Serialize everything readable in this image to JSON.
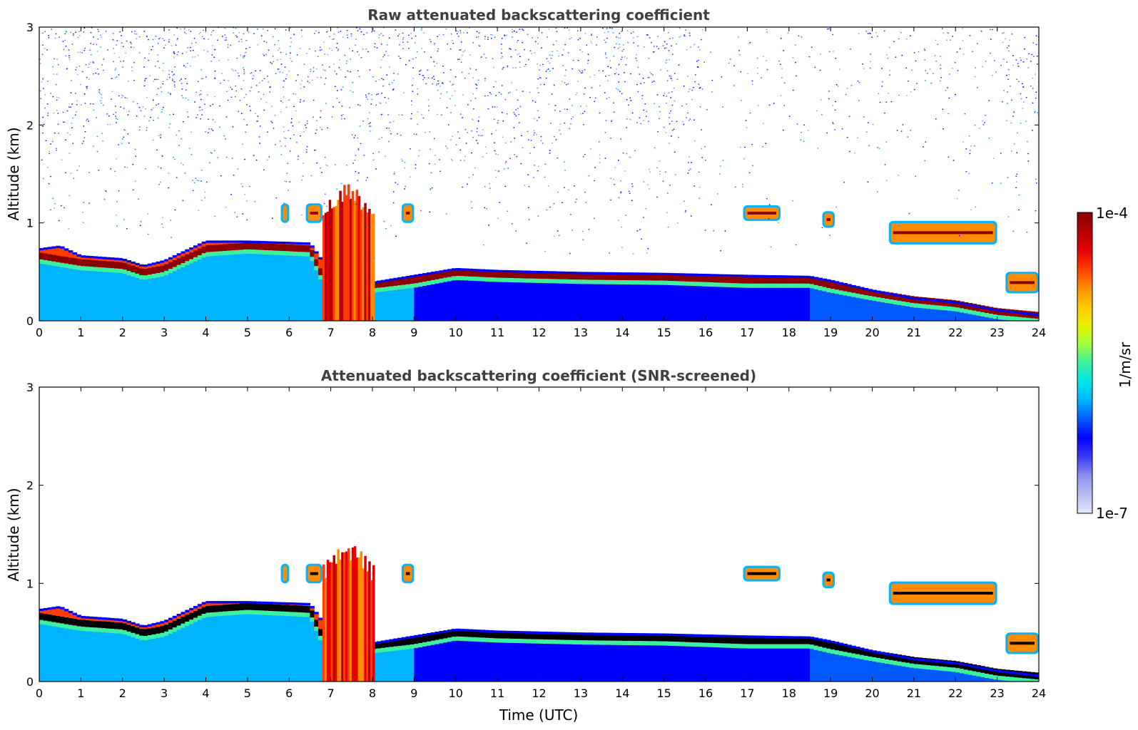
{
  "chart_data": [
    {
      "type": "heatmap",
      "title": "Raw attenuated backscattering coefficient",
      "xlabel": "",
      "ylabel": "Altitude (km)",
      "xlim": [
        0,
        24
      ],
      "ylim": [
        0,
        3
      ],
      "xticks": [
        "0",
        "1",
        "2",
        "3",
        "4",
        "5",
        "6",
        "7",
        "8",
        "9",
        "10",
        "11",
        "12",
        "13",
        "14",
        "15",
        "16",
        "17",
        "18",
        "19",
        "20",
        "21",
        "22",
        "23",
        "24"
      ],
      "yticks": [
        "0",
        "1",
        "2",
        "3"
      ],
      "grid": false
    },
    {
      "type": "heatmap",
      "title": "Attenuated backscattering coefficient (SNR-screened)",
      "xlabel": "Time (UTC)",
      "ylabel": "Altitude (km)",
      "xlim": [
        0,
        24
      ],
      "ylim": [
        0,
        3
      ],
      "xticks": [
        "0",
        "1",
        "2",
        "3",
        "4",
        "5",
        "6",
        "7",
        "8",
        "9",
        "10",
        "11",
        "12",
        "13",
        "14",
        "15",
        "16",
        "17",
        "18",
        "19",
        "20",
        "21",
        "22",
        "23",
        "24"
      ],
      "yticks": [
        "0",
        "1",
        "2",
        "3"
      ],
      "grid": false
    }
  ],
  "colorbar": {
    "label": "1/m/sr",
    "max_label": "1e-4",
    "min_label": "1e-7",
    "scale": "log",
    "colormap": [
      "#e6e8fa",
      "#b7bdf2",
      "#8a90ee",
      "#3a3af5",
      "#0000ff",
      "#005aff",
      "#00b4ff",
      "#00e6e6",
      "#3cf0a0",
      "#a0ff3c",
      "#e6f000",
      "#ffc800",
      "#ff8c00",
      "#ff3c00",
      "#e60000",
      "#b40000",
      "#8b0000"
    ]
  },
  "features": {
    "layer_top_km": [
      [
        0,
        0.72
      ],
      [
        0.5,
        0.75
      ],
      [
        1,
        0.65
      ],
      [
        2,
        0.62
      ],
      [
        2.5,
        0.55
      ],
      [
        3,
        0.6
      ],
      [
        4,
        0.8
      ],
      [
        5,
        0.8
      ],
      [
        6.5,
        0.78
      ],
      [
        6.8,
        0.6
      ],
      [
        7,
        0.3
      ],
      [
        8,
        0.38
      ],
      [
        9,
        0.45
      ],
      [
        10,
        0.52
      ],
      [
        11,
        0.5
      ],
      [
        13,
        0.48
      ],
      [
        15,
        0.47
      ],
      [
        17,
        0.45
      ],
      [
        18.5,
        0.44
      ],
      [
        19,
        0.4
      ],
      [
        20,
        0.3
      ],
      [
        21,
        0.22
      ],
      [
        22,
        0.18
      ],
      [
        23,
        0.1
      ],
      [
        24,
        0.05
      ]
    ],
    "core_km": [
      [
        0,
        0.65
      ],
      [
        1,
        0.58
      ],
      [
        2,
        0.55
      ],
      [
        2.5,
        0.48
      ],
      [
        3,
        0.52
      ],
      [
        4,
        0.72
      ],
      [
        5,
        0.75
      ],
      [
        6.5,
        0.72
      ],
      [
        7,
        0.25
      ],
      [
        8,
        0.35
      ],
      [
        9,
        0.4
      ],
      [
        10,
        0.48
      ],
      [
        11,
        0.46
      ],
      [
        13,
        0.44
      ],
      [
        15,
        0.43
      ],
      [
        17,
        0.4
      ],
      [
        18.5,
        0.4
      ],
      [
        19,
        0.35
      ],
      [
        20,
        0.27
      ],
      [
        21,
        0.2
      ],
      [
        22,
        0.16
      ],
      [
        23,
        0.08
      ],
      [
        24,
        0.04
      ]
    ],
    "clouds": [
      {
        "x0": 16.9,
        "x1": 17.8,
        "y0": 1.02,
        "y1": 1.18
      },
      {
        "x0": 18.8,
        "x1": 19.1,
        "y0": 0.95,
        "y1": 1.12
      },
      {
        "x0": 20.4,
        "x1": 23.0,
        "y0": 0.78,
        "y1": 1.02
      },
      {
        "x0": 23.2,
        "x1": 24.0,
        "y0": 0.28,
        "y1": 0.5
      },
      {
        "x0": 5.8,
        "x1": 6.0,
        "y0": 1.0,
        "y1": 1.2
      },
      {
        "x0": 6.4,
        "x1": 6.8,
        "y0": 1.0,
        "y1": 1.2
      },
      {
        "x0": 8.7,
        "x1": 9.0,
        "y0": 1.0,
        "y1": 1.2
      }
    ],
    "convection": {
      "x0": 6.8,
      "x1": 8.0,
      "y0": 0.0,
      "y1": 1.45
    }
  }
}
